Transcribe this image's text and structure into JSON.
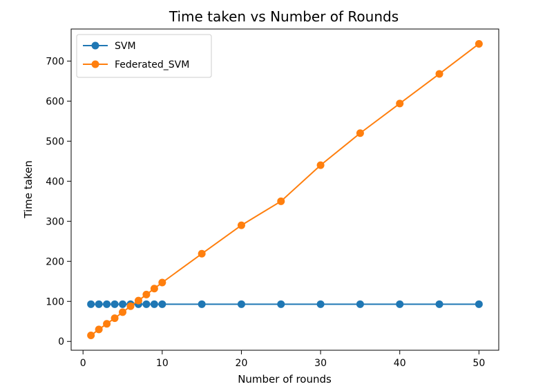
{
  "chart_data": {
    "type": "line",
    "title": "Time taken vs Number of Rounds",
    "xlabel": "Number of rounds",
    "ylabel": "Time taken",
    "xlim": [
      -1.5,
      52.5
    ],
    "ylim": [
      -22,
      780
    ],
    "xticks": [
      0,
      10,
      20,
      30,
      40,
      50
    ],
    "yticks": [
      0,
      100,
      200,
      300,
      400,
      500,
      600,
      700
    ],
    "grid": false,
    "legend": "upper-left",
    "series": [
      {
        "name": "SVM",
        "color": "#1f77b4",
        "marker": "circle",
        "x": [
          1,
          2,
          3,
          4,
          5,
          6,
          7,
          8,
          9,
          10,
          15,
          20,
          25,
          30,
          35,
          40,
          45,
          50
        ],
        "y": [
          93,
          93,
          93,
          93,
          93,
          93,
          93,
          93,
          93,
          93,
          93,
          93,
          93,
          93,
          93,
          93,
          93,
          93
        ]
      },
      {
        "name": "Federated_SVM",
        "color": "#ff7f0e",
        "marker": "circle",
        "x": [
          1,
          2,
          3,
          4,
          5,
          6,
          7,
          8,
          9,
          10,
          15,
          20,
          25,
          30,
          35,
          40,
          45,
          50
        ],
        "y": [
          15,
          30,
          44,
          58,
          73,
          88,
          102,
          117,
          132,
          147,
          219,
          290,
          350,
          440,
          520,
          594,
          668,
          743
        ]
      }
    ]
  }
}
